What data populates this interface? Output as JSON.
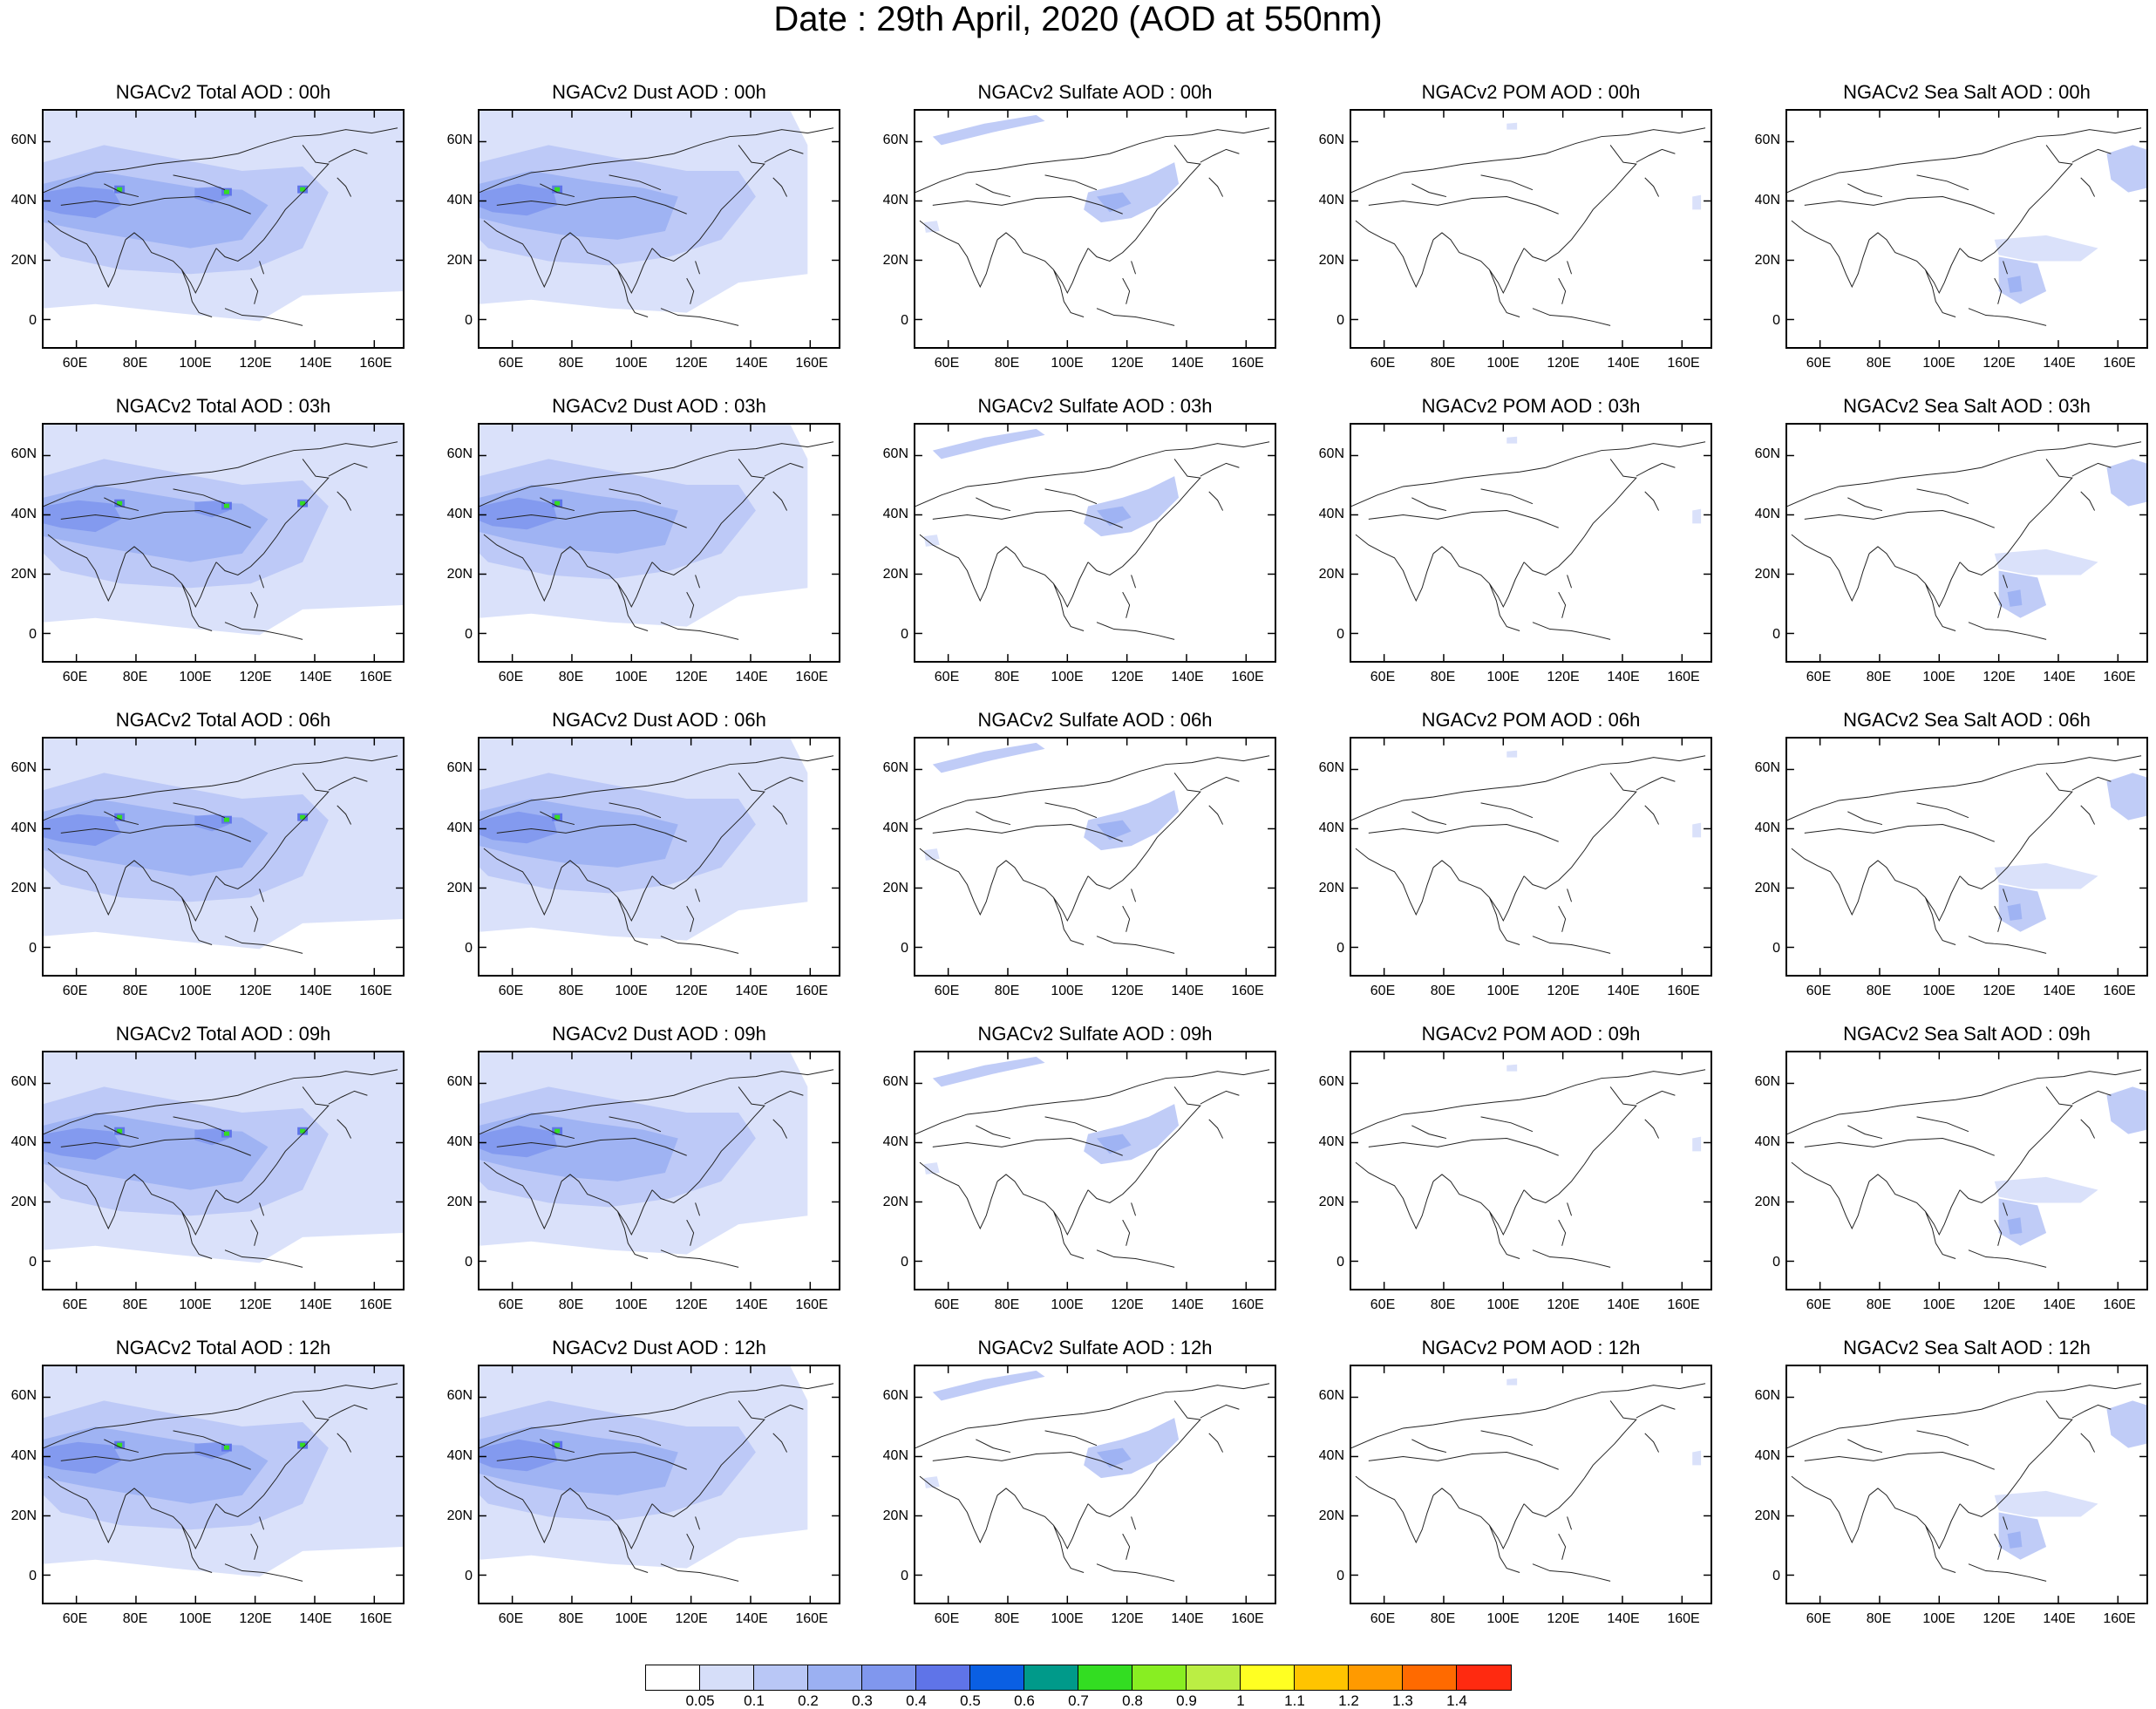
{
  "title": "Date : 29th April, 2020 (AOD at 550nm)",
  "axes": {
    "x_ticks": [
      "60E",
      "80E",
      "100E",
      "120E",
      "140E",
      "160E"
    ],
    "y_ticks": [
      "60N",
      "40N",
      "20N",
      "0"
    ]
  },
  "columns": [
    {
      "key": "total",
      "accent": "#8fa6f2"
    },
    {
      "key": "dust",
      "accent": "#9bb0f2"
    },
    {
      "key": "sulfate",
      "accent": "#b9c7f6"
    },
    {
      "key": "pom",
      "accent": "#d6def9"
    },
    {
      "key": "seasalt",
      "accent": "#b9c7f6"
    }
  ],
  "panel_titles": [
    [
      "NGACv2 Total AOD : 00h",
      "NGACv2 Dust AOD : 00h",
      "NGACv2 Sulfate AOD : 00h",
      "NGACv2 POM AOD : 00h",
      "NGACv2 Sea Salt AOD : 00h"
    ],
    [
      "NGACv2 Total AOD : 03h",
      "NGACv2 Dust AOD : 03h",
      "NGACv2 Sulfate AOD : 03h",
      "NGACv2 POM AOD : 03h",
      "NGACv2 Sea Salt AOD : 03h"
    ],
    [
      "NGACv2 Total AOD : 06h",
      "NGACv2 Dust AOD : 06h",
      "NGACv2 Sulfate AOD : 06h",
      "NGACv2 POM AOD : 06h",
      "NGACv2 Sea Salt AOD : 06h"
    ],
    [
      "NGACv2 Total AOD : 09h",
      "NGACv2 Dust AOD : 09h",
      "NGACv2 Sulfate AOD : 09h",
      "NGACv2 POM AOD : 09h",
      "NGACv2 Sea Salt  AOD : 09h"
    ],
    [
      "NGACv2 Total AOD  : 12h",
      "NGACv2 Dust AOD : 12h",
      "NGACv2 Sulfate AOD : 12h",
      "NGACv2 POM  AOD : 12h",
      "NGACv2 Sea Salt  AOD : 12h"
    ]
  ],
  "colorbar": {
    "labels": [
      "0.05",
      "0.1",
      "0.2",
      "0.3",
      "0.4",
      "0.5",
      "0.6",
      "0.7",
      "0.8",
      "0.9",
      "1",
      "1.1",
      "1.2",
      "1.3",
      "1.4"
    ],
    "colors": [
      "#ffffff",
      "#d6def9",
      "#b9c7f6",
      "#9bb0f2",
      "#8097ee",
      "#5f74e8",
      "#0a5fe3",
      "#009a8a",
      "#33dd22",
      "#88ee22",
      "#bbee44",
      "#ffff22",
      "#ffc400",
      "#ff9a00",
      "#ff6a00",
      "#ff2a10"
    ]
  }
}
